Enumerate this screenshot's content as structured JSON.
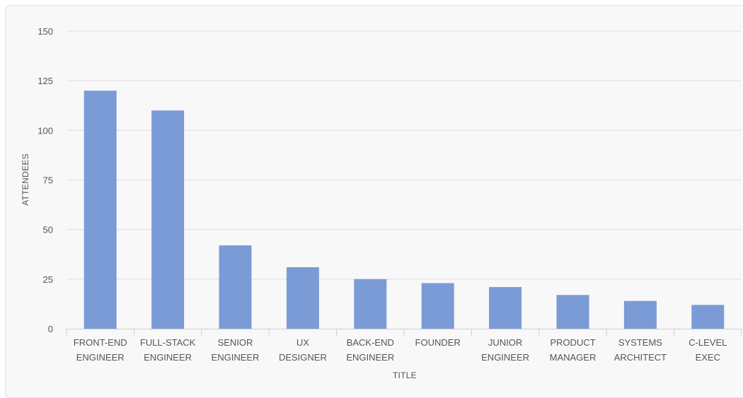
{
  "chart_data": {
    "type": "bar",
    "title": "",
    "xlabel": "TITLE",
    "ylabel": "ATTENDEES",
    "ylim": [
      0,
      150
    ],
    "yticks": [
      0,
      25,
      50,
      75,
      100,
      125,
      150
    ],
    "grid": true,
    "color": "#7b9bd7",
    "categories": [
      [
        "FRONT-END",
        "ENGINEER"
      ],
      [
        "FULL-STACK",
        "ENGINEER"
      ],
      [
        "SENIOR",
        "ENGINEER"
      ],
      [
        "UX",
        "DESIGNER"
      ],
      [
        "BACK-END",
        "ENGINEER"
      ],
      [
        "FOUNDER"
      ],
      [
        "JUNIOR",
        "ENGINEER"
      ],
      [
        "PRODUCT",
        "MANAGER"
      ],
      [
        "SYSTEMS",
        "ARCHITECT"
      ],
      [
        "C-LEVEL",
        "EXEC"
      ]
    ],
    "values": [
      120,
      110,
      42,
      31,
      25,
      23,
      21,
      17,
      14,
      12
    ]
  }
}
